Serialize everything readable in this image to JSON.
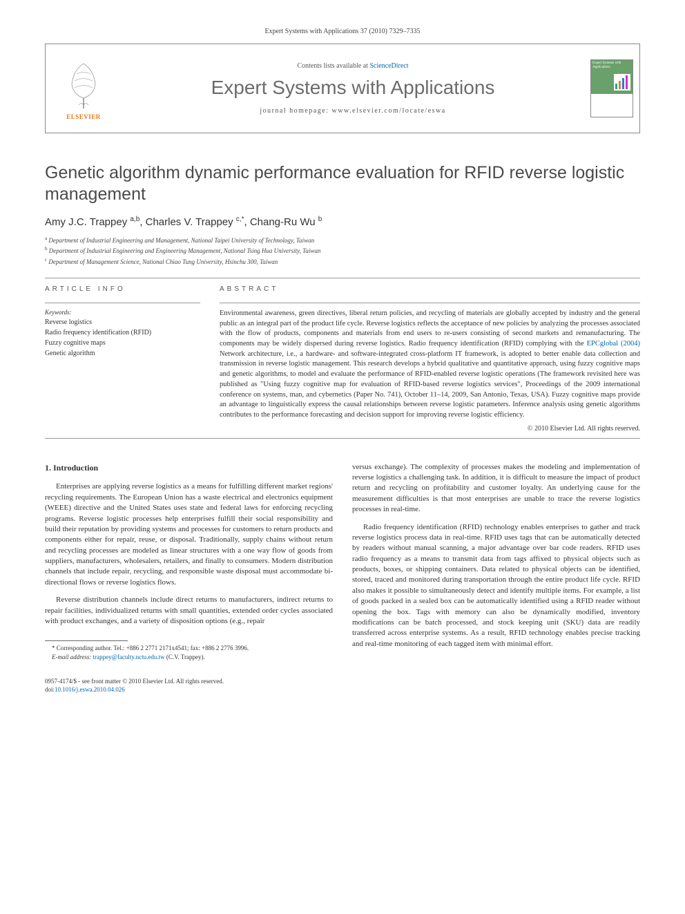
{
  "header": {
    "citation": "Expert Systems with Applications 37 (2010) 7329–7335",
    "contents_prefix": "Contents lists available at ",
    "contents_link": "ScienceDirect",
    "journal_name": "Expert Systems with Applications",
    "homepage": "journal homepage: www.elsevier.com/locate/eswa",
    "publisher": "ELSEVIER",
    "cover_text": "Expert Systems with Applications"
  },
  "article": {
    "title": "Genetic algorithm dynamic performance evaluation for RFID reverse logistic management",
    "authors_html": "Amy J.C. Trappey <sup>a,b</sup>, Charles V. Trappey <sup>c,*</sup>, Chang-Ru Wu <sup>b</sup>",
    "affiliations": [
      {
        "sup": "a",
        "text": "Department of Industrial Engineering and Management, National Taipei University of Technology, Taiwan"
      },
      {
        "sup": "b",
        "text": "Department of Industrial Engineering and Engineering Management, National Tsing Hua University, Taiwan"
      },
      {
        "sup": "c",
        "text": "Department of Management Science, National Chiao Tung University, Hsinchu 300, Taiwan"
      }
    ]
  },
  "labels": {
    "article_info": "ARTICLE INFO",
    "abstract": "ABSTRACT",
    "keywords": "Keywords:"
  },
  "keywords": [
    "Reverse logistics",
    "Radio frequency identification (RFID)",
    "Fuzzy cognitive maps",
    "Genetic algorithm"
  ],
  "abstract": {
    "p1_pre": "Environmental awareness, green directives, liberal return policies, and recycling of materials are globally accepted by industry and the general public as an integral part of the product life cycle. Reverse logistics reflects the acceptance of new policies by analyzing the processes associated with the flow of products, components and materials from end users to re-users consisting of second markets and remanufacturing. The components may be widely dispersed during reverse logistics. Radio frequency identification (RFID) complying with the ",
    "p1_link": "EPCglobal (2004)",
    "p1_post": " Network architecture, i.e., a hardware- and software-integrated cross-platform IT framework, is adopted to better enable data collection and transmission in reverse logistic management. This research develops a hybrid qualitative and quantitative approach, using fuzzy cognitive maps and genetic algorithms, to model and evaluate the performance of RFID-enabled reverse logistic operations (The framework revisited here was published as \"Using fuzzy cognitive map for evaluation of RFID-based reverse logistics services\", Proceedings of the 2009 international conference on systems, man, and cybernetics (Paper No. 741), October 11–14, 2009, San Antonio, Texas, USA). Fuzzy cognitive maps provide an advantage to linguistically express the causal relationships between reverse logistic parameters. Inference analysis using genetic algorithms contributes to the performance forecasting and decision support for improving reverse logistic efficiency.",
    "copyright": "© 2010 Elsevier Ltd. All rights reserved."
  },
  "body": {
    "intro_heading": "1. Introduction",
    "left": [
      "Enterprises are applying reverse logistics as a means for fulfilling different market regions' recycling requirements. The European Union has a waste electrical and electronics equipment (WEEE) directive and the United States uses state and federal laws for enforcing recycling programs. Reverse logistic processes help enterprises fulfill their social responsibility and build their reputation by providing systems and processes for customers to return products and components either for repair, reuse, or disposal. Traditionally, supply chains without return and recycling processes are modeled as linear structures with a one way flow of goods from suppliers, manufacturers, wholesalers, retailers, and finally to consumers. Modern distribution channels that include repair, recycling, and responsible waste disposal must accommodate bi-directional flows or reverse logistics flows.",
      "Reverse distribution channels include direct returns to manufacturers, indirect returns to repair facilities, individualized returns with small quantities, extended order cycles associated with product exchanges, and a variety of disposition options (e.g., repair"
    ],
    "right": [
      "versus exchange). The complexity of processes makes the modeling and implementation of reverse logistics a challenging task. In addition, it is difficult to measure the impact of product return and recycling on profitability and customer loyalty. An underlying cause for the measurement difficulties is that most enterprises are unable to trace the reverse logistics processes in real-time.",
      "Radio frequency identification (RFID) technology enables enterprises to gather and track reverse logistics process data in real-time. RFID uses tags that can be automatically detected by readers without manual scanning, a major advantage over bar code readers. RFID uses radio frequency as a means to transmit data from tags affixed to physical objects such as products, boxes, or shipping containers. Data related to physical objects can be identified, stored, traced and monitored during transportation through the entire product life cycle. RFID also makes it possible to simultaneously detect and identify multiple items. For example, a list of goods packed in a sealed box can be automatically identified using a RFID reader without opening the box. Tags with memory can also be dynamically modified, inventory modifications can be batch processed, and stock keeping unit (SKU) data are readily transferred across enterprise systems. As a result, RFID technology enables precise tracking and real-time monitoring of each tagged item with minimal effort."
    ]
  },
  "footnote": {
    "corr": "* Corresponding author. Tel.: +886 2 2771 2171x4541; fax: +886 2 2776 3996.",
    "email_label": "E-mail address: ",
    "email": "trappey@faculty.nctu.edu.tw",
    "email_who": " (C.V. Trappey)."
  },
  "bottom": {
    "issn": "0957-4174/$ - see front matter © 2010 Elsevier Ltd. All rights reserved.",
    "doi_label": "doi:",
    "doi": "10.1016/j.eswa.2010.04.026"
  }
}
